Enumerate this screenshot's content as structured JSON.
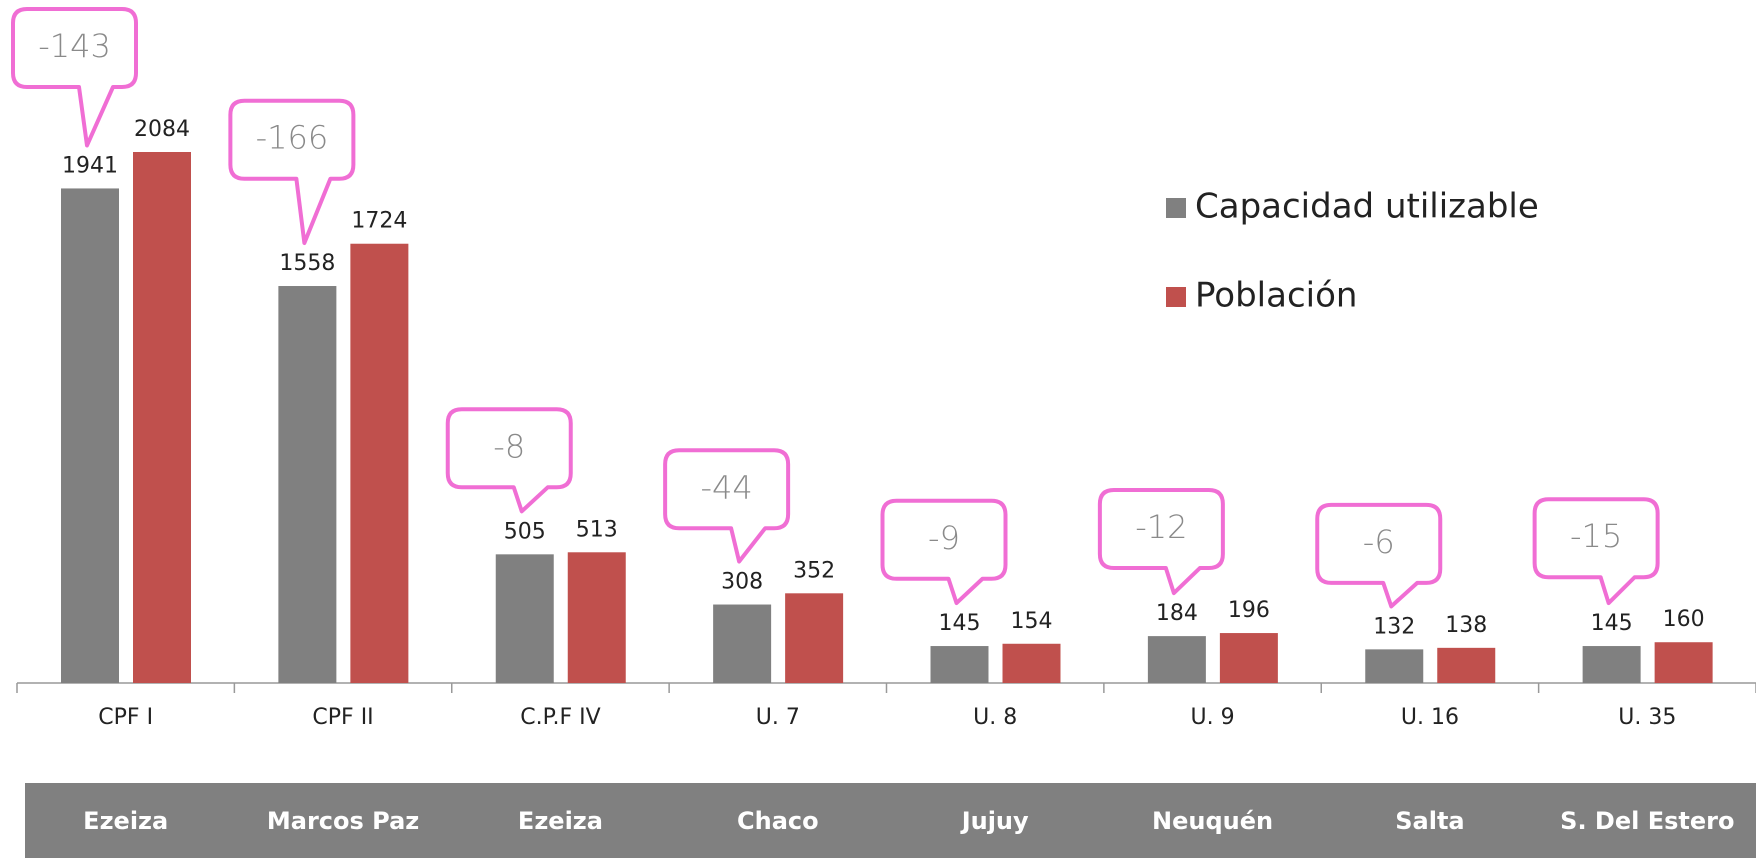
{
  "chart_data": {
    "type": "bar",
    "categories": [
      "CPF I",
      "CPF II",
      "C.P.F IV",
      "U. 7",
      "U. 8",
      "U. 9",
      "U. 16",
      "U. 35"
    ],
    "series": [
      {
        "name": "Capacidad utilizable",
        "color": "#808080",
        "values": [
          1941,
          1558,
          505,
          308,
          145,
          184,
          132,
          145
        ]
      },
      {
        "name": "Población",
        "color": "#c0504d",
        "values": [
          2084,
          1724,
          513,
          352,
          154,
          196,
          138,
          160
        ]
      }
    ],
    "differences": [
      -143,
      -166,
      -8,
      -44,
      -9,
      -12,
      -6,
      -15
    ],
    "regions": [
      "Ezeiza",
      "Marcos Paz",
      "Ezeiza",
      "Chaco",
      "Jujuy",
      "Neuquén",
      "Salta",
      "S. Del Estero"
    ],
    "callout_color": "#f06ed4",
    "legend": "right"
  }
}
